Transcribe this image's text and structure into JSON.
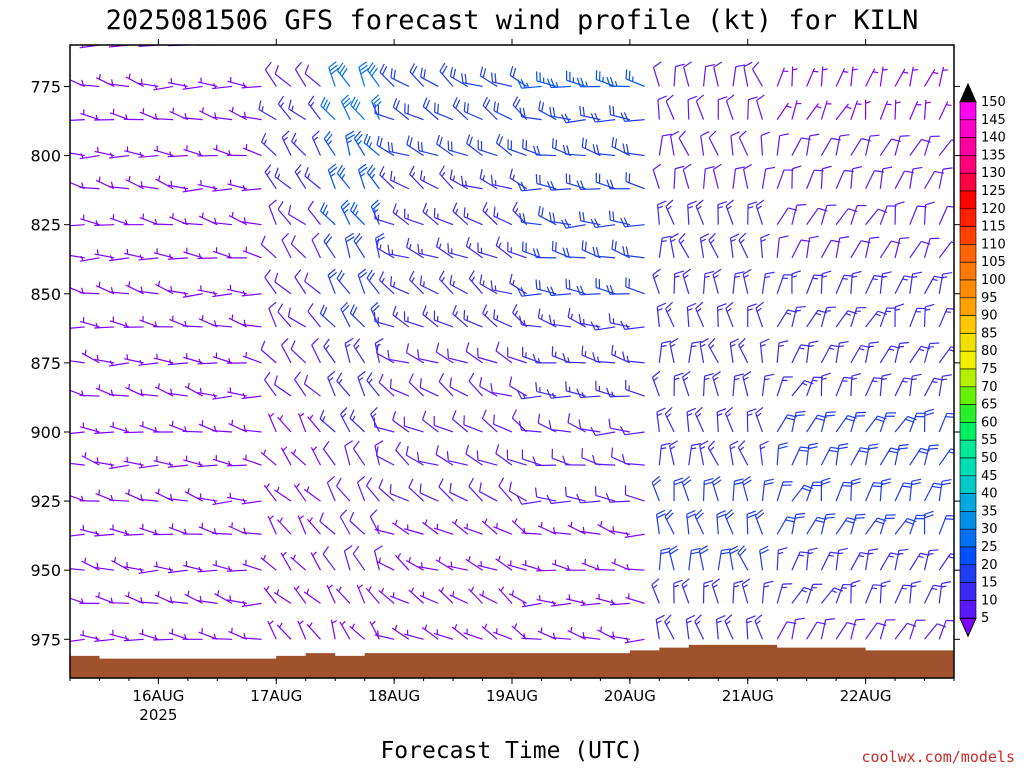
{
  "title": "2025081506 GFS forecast wind profile (kt) for KILN",
  "credit": "coolwx.com/models",
  "chart_data": {
    "type": "wind-barb-time-height",
    "title": "2025081506 GFS forecast wind profile (kt) for KILN",
    "xlabel": "Forecast Time (UTC)",
    "ylabel": "",
    "y_axis": {
      "ticks": [
        775,
        800,
        825,
        850,
        875,
        900,
        925,
        950,
        975
      ],
      "range": [
        760,
        989
      ],
      "inverted": true
    },
    "x_axis": {
      "ticks": [
        {
          "label": "16AUG",
          "sub": "2025",
          "hour": 18
        },
        {
          "label": "17AUG",
          "sub": "",
          "hour": 42
        },
        {
          "label": "18AUG",
          "sub": "",
          "hour": 66
        },
        {
          "label": "19AUG",
          "sub": "",
          "hour": 90
        },
        {
          "label": "20AUG",
          "sub": "",
          "hour": 114
        },
        {
          "label": "21AUG",
          "sub": "",
          "hour": 138
        },
        {
          "label": "22AUG",
          "sub": "",
          "hour": 162
        }
      ],
      "range_hours": [
        0,
        180
      ]
    },
    "colorbar": {
      "values": [
        5,
        10,
        15,
        20,
        25,
        30,
        35,
        40,
        45,
        50,
        55,
        60,
        65,
        70,
        75,
        80,
        85,
        90,
        95,
        100,
        105,
        110,
        115,
        120,
        125,
        130,
        135,
        140,
        145,
        150
      ],
      "colors": [
        "#8000ff",
        "#5a18ff",
        "#3c28f5",
        "#1e3cf0",
        "#0050ff",
        "#0070f0",
        "#0090e8",
        "#00aae0",
        "#00c8c8",
        "#00dcb4",
        "#00e896",
        "#00f064",
        "#28f028",
        "#64f000",
        "#b4f000",
        "#f0f000",
        "#f0e000",
        "#ffc800",
        "#ffa000",
        "#ff8c00",
        "#ff7800",
        "#ff6400",
        "#ff4000",
        "#ff2000",
        "#ff0000",
        "#ff0040",
        "#ff0078",
        "#ff00a0",
        "#ff00c8",
        "#ff00f0"
      ]
    },
    "barb_levels_hpa": [
      760,
      775,
      787,
      800,
      812,
      825,
      837,
      850,
      862,
      875,
      887,
      900,
      912,
      925,
      937,
      950,
      962,
      975
    ],
    "wind_series": [
      {
        "period": "15AUG 06Z-16AUG 18Z",
        "direction_deg": 280,
        "speed_kt": [
          6,
          8,
          8,
          8,
          9,
          8,
          8,
          7,
          7,
          6,
          6,
          5,
          5,
          5,
          5,
          5,
          5,
          5
        ]
      },
      {
        "period": "17AUG",
        "direction_deg": 320,
        "speed_kt": [
          12,
          14,
          15,
          15,
          15,
          14,
          13,
          12,
          11,
          10,
          10,
          9,
          8,
          7,
          7,
          6,
          6,
          5
        ]
      },
      {
        "period": "17AUG 12Z-18Z",
        "direction_deg": 330,
        "speed_kt": [
          30,
          30,
          30,
          28,
          26,
          25,
          24,
          22,
          20,
          18,
          17,
          15,
          14,
          12,
          11,
          10,
          9,
          8
        ]
      },
      {
        "period": "18AUG-19AUG",
        "direction_deg": 300,
        "speed_kt": [
          18,
          20,
          20,
          20,
          19,
          18,
          17,
          16,
          15,
          14,
          13,
          12,
          11,
          10,
          9,
          8,
          7,
          6
        ]
      },
      {
        "period": "19AUG-20AUG",
        "direction_deg": 280,
        "speed_kt": [
          25,
          25,
          24,
          24,
          22,
          22,
          20,
          20,
          18,
          17,
          15,
          14,
          12,
          10,
          9,
          8,
          7,
          6
        ]
      },
      {
        "period": "20AUG-21AUG",
        "direction_deg": 350,
        "speed_kt": [
          10,
          12,
          13,
          14,
          14,
          15,
          15,
          16,
          17,
          18,
          18,
          19,
          19,
          20,
          20,
          20,
          18,
          15
        ]
      },
      {
        "period": "21AUG-22AUG",
        "direction_deg": 20,
        "speed_kt": [
          8,
          9,
          9,
          10,
          11,
          12,
          14,
          15,
          16,
          17,
          18,
          20,
          20,
          20,
          20,
          18,
          16,
          14
        ]
      }
    ],
    "terrain_pressure_hpa": {
      "hours": [
        0,
        6,
        12,
        18,
        24,
        30,
        36,
        42,
        48,
        54,
        60,
        66,
        72,
        78,
        84,
        90,
        96,
        102,
        108,
        114,
        120,
        126,
        132,
        138,
        144,
        150,
        156,
        162,
        168,
        174,
        180
      ],
      "values": [
        981,
        982,
        982,
        982,
        982,
        982,
        982,
        981,
        980,
        981,
        980,
        980,
        980,
        980,
        980,
        980,
        980,
        980,
        980,
        979,
        978,
        977,
        977,
        977,
        978,
        978,
        978,
        979,
        979,
        979,
        979
      ]
    },
    "grid": false,
    "legend": "colorbar-right"
  }
}
